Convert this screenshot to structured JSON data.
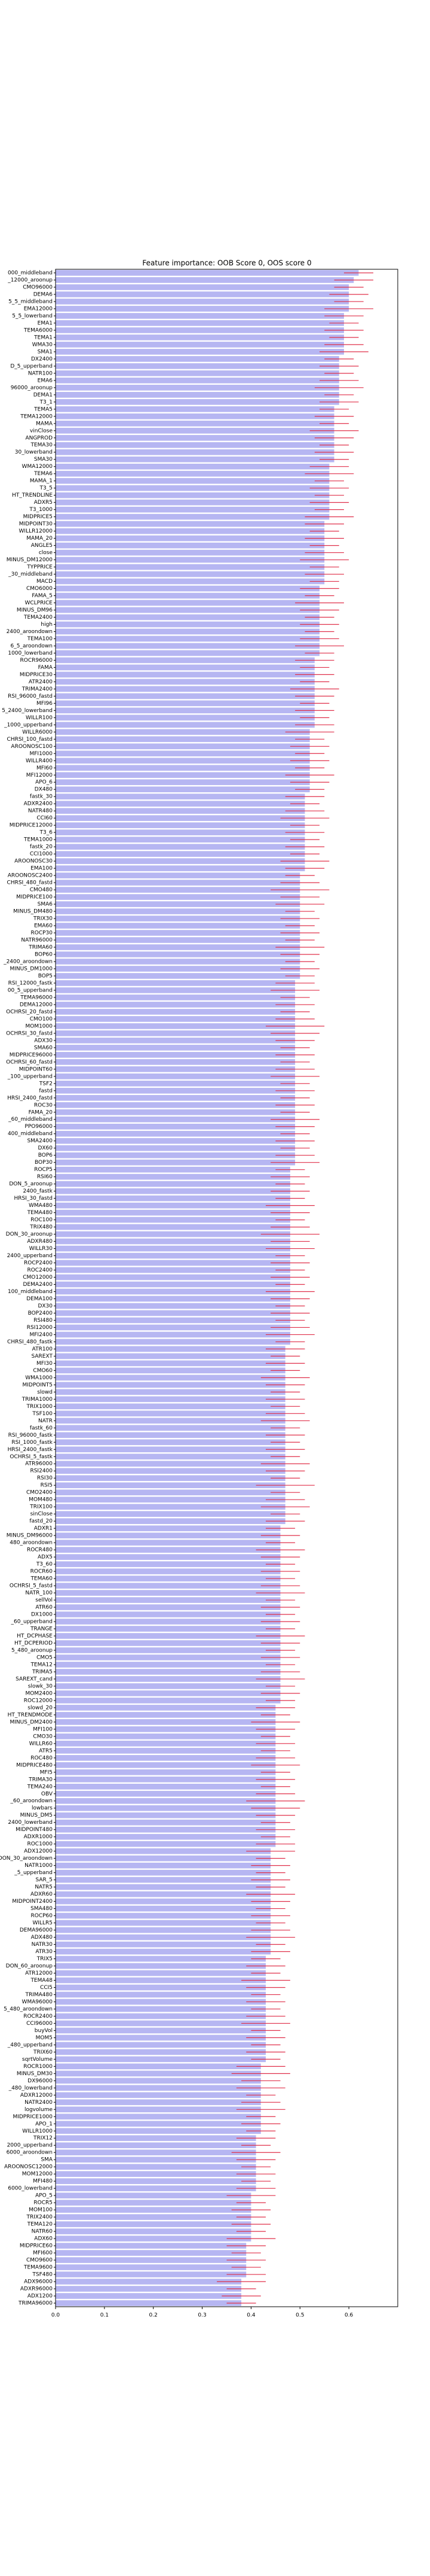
{
  "chart_data": {
    "type": "barh",
    "title": "Feature importance: OOB Score 0, OOS score 0",
    "color": "#b6b6f2",
    "error_color": "#e0304a",
    "xlim": [
      0,
      0.7
    ],
    "xticks": [
      {
        "value": 0,
        "label": "0.0"
      },
      0.1,
      0.2,
      0.3,
      0.4,
      0.5,
      0.6
    ],
    "categories": [
      "000_middleband",
      "_12000_aroonup",
      "CMO96000",
      "DEMA6",
      "5_5_middleband",
      "EMA12000",
      "5_5_lowerband",
      "EMA1",
      "TEMA6000",
      "TEMA1",
      "WMA30",
      "SMA1",
      "DX2400",
      "D_5_upperband",
      "NATR100",
      "EMA6",
      "96000_aroonup",
      "DEMA1",
      "T3_1",
      "TEMA5",
      "TEMA12000",
      "MAMA",
      "vinClose",
      "ANGPROD",
      "TEMA30",
      "30_lowerband",
      "SMA30",
      "WMA12000",
      "TEMA6",
      "MAMA_1",
      "T3_5",
      "HT_TRENDLINE",
      "ADXR5",
      "T3_1000",
      "MIDPRICE5",
      "MIDPOINT30",
      "WILLR12000",
      "MAMA_20",
      "ANGLE5",
      "close",
      "MINUS_DM12000",
      "TYPPRICE",
      "_30_middleband",
      "MACD",
      "CMO6000",
      "FAMA_5",
      "WCLPRICE",
      "MINUS_DM96",
      "TEMA2400",
      "high",
      "2400_aroondown",
      "TEMA100",
      "6_5_aroondown",
      "1000_lowerband",
      "ROCR96000",
      "FAMA",
      "MIDPRICE30",
      "ATR2400",
      "TRIMA2400",
      "RSI_96000_fastd",
      "MFI96",
      "5_2400_lowerband",
      "WILLR100",
      "_1000_upperband",
      "WILLR6000",
      "CHRSI_100_fastd",
      "AROONOSC100",
      "MFI1000",
      "WILLR400",
      "MFI60",
      "MFI12000",
      "APO_6",
      "DX480",
      "fastk_30",
      "ADXR2400",
      "NATR480",
      "CCI60",
      "MIDPRICE12000",
      "T3_6",
      "TEMA1000",
      "fastk_20",
      "CCI1000",
      "AROONOSC30",
      "EMA100",
      "AROONOSC2400",
      "CHRSI_480_fastd",
      "CMO480",
      "MIDPRICE100",
      "SMA6",
      "MINUS_DM480",
      "TRIX30",
      "EMA60",
      "ROCP30",
      "NATR96000",
      "TRIMA60",
      "BOP60",
      "_2400_aroondown",
      "MINUS_DM1000",
      "BOP5",
      "RSI_12000_fastk",
      "00_5_upperband",
      "TEMA96000",
      "DEMA12000",
      "OCHRSI_20_fastd",
      "CMO100",
      "MOM1000",
      "OCHRSI_30_fastd",
      "ADX30",
      "SMA60",
      "MIDPRICE96000",
      "OCHRSI_60_fastd",
      "MIDPOINT60",
      "_100_upperband",
      "TSF2",
      "fastd",
      "HRSI_2400_fastd",
      "ROC30",
      "FAMA_20",
      "_60_middleband",
      "PPO96000",
      "400_middleband",
      "SMA2400",
      "DX60",
      "BOP6",
      "BOP30",
      "ROCP5",
      "RSI60",
      "DON_5_aroonup",
      "2400_fastk",
      "HRSI_30_fastd",
      "WMA480",
      "TEMA480",
      "ROC100",
      "TRIX480",
      "DON_30_aroonup",
      "ADXR480",
      "WILLR30",
      "2400_upperband",
      "ROCP2400",
      "ROC2400",
      "CMO12000",
      "DEMA2400",
      "100_middleband",
      "DEMA100",
      "DX30",
      "BOP2400",
      "RSI480",
      "RSI12000",
      "MFI2400",
      "CHRSI_480_fastk",
      "ATR100",
      "SAREXT",
      "MFI30",
      "CMO60",
      "WMA1000",
      "MIDPOINT5",
      "slowd",
      "TRIMA1000",
      "TRIX1000",
      "TSF100",
      "NATR",
      "fastk_60",
      "RSI_96000_fastk",
      "RSI_1000_fastk",
      "HRSI_2400_fastk",
      "OCHRSI_5_fastk",
      "ATR96000",
      "RSI2400",
      "RSI30",
      "RSI5",
      "CMO2400",
      "MOM480",
      "TRIX100",
      "sinClose",
      "fastd_20",
      "ADXR1",
      "MINUS_DM96000",
      "480_aroondown",
      "ROCR480",
      "ADX5",
      "T3_60",
      "ROCR60",
      "TEMA60",
      "OCHRSI_5_fastd",
      "NATR_100",
      "sellVol",
      "ATR60",
      "DX1000",
      "_60_upperband",
      "TRANGE",
      "HT_DCPHASE",
      "HT_DCPERIOD",
      "5_480_aroonup",
      "CMO5",
      "TEMA12",
      "TRIMA5",
      "SAREXT_cand",
      "slowk_30",
      "MOM2400",
      "ROC12000",
      "slowd_20",
      "HT_TRENDMODE",
      "MINUS_DM2400",
      "MFI100",
      "CMO30",
      "WILLR60",
      "ATR5",
      "ROC480",
      "MIDPRICE480",
      "MFI5",
      "TRIMA30",
      "TEMA240",
      "OBV",
      "_60_aroondown",
      "lowbars",
      "MINUS_DM5",
      "2400_lowerband",
      "MIDPOINT480",
      "ADXR1000",
      "ROC1000",
      "ADX12000",
      "DON_30_aroondown",
      "NATR1000",
      "_5_upperband",
      "SAR_5",
      "NATR5",
      "ADXR60",
      "MIDPOINT2400",
      "SMA480",
      "ROCP60",
      "WILLR5",
      "DEMA96000",
      "ADX480",
      "NATR30",
      "ATR30",
      "TRIX5",
      "DON_60_aroonup",
      "ATR12000",
      "TEMA48",
      "CCI5",
      "TRIMA480",
      "WMA96000",
      "5_480_aroondown",
      "ROCR2400",
      "CCI96000",
      "buyVol",
      "MOM5",
      "_480_upperband",
      "TRIX60",
      "sqrtVolume",
      "ROCR1000",
      "MINUS_DM30",
      "DX96000",
      "_480_lowerband",
      "ADXR12000",
      "NATR2400",
      "logvolume",
      "MIDPRICE1000",
      "APO_1",
      "WILLR1000",
      "TRIX12",
      "2000_upperband",
      "6000_aroondown",
      "SMA",
      "AROONOSC12000",
      "MOM12000",
      "MFI480",
      "6000_lowerband",
      "APO_5",
      "ROCR5",
      "MOM100",
      "TRIX2400",
      "TEMA120",
      "NATR60",
      "ADX60",
      "MIDPRICE60",
      "MFI600",
      "CMO9600",
      "TEMA9600",
      "TSF480",
      "ADX96000",
      "ADXR96000",
      "ADX1200",
      "TRIMA96000"
    ],
    "values": [
      0.62,
      0.61,
      0.6,
      0.6,
      0.6,
      0.6,
      0.59,
      0.59,
      0.59,
      0.59,
      0.59,
      0.59,
      0.58,
      0.58,
      0.58,
      0.58,
      0.58,
      0.58,
      0.58,
      0.57,
      0.57,
      0.57,
      0.57,
      0.57,
      0.57,
      0.57,
      0.57,
      0.56,
      0.56,
      0.56,
      0.56,
      0.56,
      0.56,
      0.56,
      0.56,
      0.55,
      0.55,
      0.55,
      0.55,
      0.55,
      0.55,
      0.55,
      0.55,
      0.55,
      0.54,
      0.54,
      0.54,
      0.54,
      0.54,
      0.54,
      0.54,
      0.54,
      0.54,
      0.54,
      0.53,
      0.53,
      0.53,
      0.53,
      0.53,
      0.53,
      0.53,
      0.53,
      0.53,
      0.53,
      0.52,
      0.52,
      0.52,
      0.52,
      0.52,
      0.52,
      0.52,
      0.52,
      0.52,
      0.51,
      0.51,
      0.51,
      0.51,
      0.51,
      0.51,
      0.51,
      0.51,
      0.51,
      0.51,
      0.51,
      0.5,
      0.5,
      0.5,
      0.5,
      0.5,
      0.5,
      0.5,
      0.5,
      0.5,
      0.5,
      0.5,
      0.5,
      0.5,
      0.5,
      0.5,
      0.49,
      0.49,
      0.49,
      0.49,
      0.49,
      0.49,
      0.49,
      0.49,
      0.49,
      0.49,
      0.49,
      0.49,
      0.49,
      0.49,
      0.49,
      0.49,
      0.49,
      0.49,
      0.49,
      0.49,
      0.49,
      0.49,
      0.49,
      0.49,
      0.49,
      0.49,
      0.48,
      0.48,
      0.48,
      0.48,
      0.48,
      0.48,
      0.48,
      0.48,
      0.48,
      0.48,
      0.48,
      0.48,
      0.48,
      0.48,
      0.48,
      0.48,
      0.48,
      0.48,
      0.48,
      0.48,
      0.48,
      0.48,
      0.48,
      0.48,
      0.48,
      0.47,
      0.47,
      0.47,
      0.47,
      0.47,
      0.47,
      0.47,
      0.47,
      0.47,
      0.47,
      0.47,
      0.47,
      0.47,
      0.47,
      0.47,
      0.47,
      0.47,
      0.47,
      0.47,
      0.47,
      0.47,
      0.47,
      0.47,
      0.47,
      0.47,
      0.46,
      0.46,
      0.46,
      0.46,
      0.46,
      0.46,
      0.46,
      0.46,
      0.46,
      0.46,
      0.46,
      0.46,
      0.46,
      0.46,
      0.46,
      0.46,
      0.46,
      0.46,
      0.46,
      0.46,
      0.46,
      0.46,
      0.46,
      0.46,
      0.46,
      0.45,
      0.45,
      0.45,
      0.45,
      0.45,
      0.45,
      0.45,
      0.45,
      0.45,
      0.45,
      0.45,
      0.45,
      0.45,
      0.45,
      0.45,
      0.45,
      0.45,
      0.45,
      0.45,
      0.45,
      0.44,
      0.44,
      0.44,
      0.44,
      0.44,
      0.44,
      0.44,
      0.44,
      0.44,
      0.44,
      0.44,
      0.44,
      0.44,
      0.44,
      0.44,
      0.43,
      0.43,
      0.43,
      0.43,
      0.43,
      0.43,
      0.43,
      0.43,
      0.43,
      0.43,
      0.43,
      0.43,
      0.43,
      0.43,
      0.43,
      0.42,
      0.42,
      0.42,
      0.42,
      0.42,
      0.42,
      0.42,
      0.42,
      0.42,
      0.42,
      0.41,
      0.41,
      0.41,
      0.41,
      0.41,
      0.41,
      0.41,
      0.41,
      0.4,
      0.4,
      0.4,
      0.4,
      0.4,
      0.4,
      0.4,
      0.39,
      0.39,
      0.39,
      0.39,
      0.39,
      0.38,
      0.38,
      0.38,
      0.38
    ],
    "errors": [
      0.03,
      0.04,
      0.03,
      0.04,
      0.03,
      0.05,
      0.04,
      0.03,
      0.04,
      0.03,
      0.04,
      0.05,
      0.03,
      0.04,
      0.03,
      0.04,
      0.05,
      0.03,
      0.04,
      0.03,
      0.04,
      0.03,
      0.05,
      0.04,
      0.03,
      0.04,
      0.03,
      0.04,
      0.05,
      0.03,
      0.04,
      0.03,
      0.04,
      0.03,
      0.05,
      0.04,
      0.03,
      0.04,
      0.03,
      0.04,
      0.05,
      0.03,
      0.04,
      0.03,
      0.04,
      0.03,
      0.05,
      0.04,
      0.03,
      0.04,
      0.03,
      0.04,
      0.05,
      0.03,
      0.04,
      0.03,
      0.04,
      0.03,
      0.05,
      0.04,
      0.03,
      0.04,
      0.03,
      0.04,
      0.05,
      0.03,
      0.04,
      0.03,
      0.04,
      0.03,
      0.05,
      0.04,
      0.03,
      0.04,
      0.03,
      0.04,
      0.05,
      0.03,
      0.04,
      0.03,
      0.04,
      0.03,
      0.05,
      0.04,
      0.03,
      0.04,
      0.06,
      0.04,
      0.05,
      0.03,
      0.04,
      0.03,
      0.04,
      0.03,
      0.05,
      0.04,
      0.03,
      0.04,
      0.03,
      0.04,
      0.05,
      0.03,
      0.04,
      0.03,
      0.04,
      0.06,
      0.05,
      0.04,
      0.03,
      0.04,
      0.03,
      0.04,
      0.05,
      0.03,
      0.04,
      0.03,
      0.04,
      0.03,
      0.05,
      0.04,
      0.03,
      0.04,
      0.03,
      0.04,
      0.05,
      0.03,
      0.04,
      0.03,
      0.04,
      0.03,
      0.05,
      0.04,
      0.03,
      0.04,
      0.06,
      0.04,
      0.05,
      0.03,
      0.04,
      0.03,
      0.04,
      0.03,
      0.05,
      0.04,
      0.03,
      0.04,
      0.03,
      0.04,
      0.05,
      0.03,
      0.04,
      0.03,
      0.04,
      0.03,
      0.05,
      0.04,
      0.03,
      0.04,
      0.03,
      0.04,
      0.05,
      0.03,
      0.04,
      0.03,
      0.04,
      0.03,
      0.05,
      0.04,
      0.03,
      0.06,
      0.03,
      0.04,
      0.05,
      0.03,
      0.04,
      0.03,
      0.04,
      0.03,
      0.05,
      0.04,
      0.03,
      0.04,
      0.03,
      0.04,
      0.05,
      0.03,
      0.04,
      0.03,
      0.04,
      0.03,
      0.05,
      0.04,
      0.03,
      0.04,
      0.03,
      0.04,
      0.05,
      0.03,
      0.04,
      0.03,
      0.04,
      0.03,
      0.05,
      0.04,
      0.03,
      0.04,
      0.03,
      0.04,
      0.05,
      0.03,
      0.04,
      0.03,
      0.04,
      0.06,
      0.05,
      0.04,
      0.03,
      0.04,
      0.03,
      0.04,
      0.05,
      0.03,
      0.04,
      0.03,
      0.04,
      0.03,
      0.05,
      0.04,
      0.03,
      0.04,
      0.03,
      0.04,
      0.05,
      0.03,
      0.04,
      0.03,
      0.04,
      0.03,
      0.05,
      0.04,
      0.03,
      0.04,
      0.03,
      0.04,
      0.05,
      0.03,
      0.04,
      0.03,
      0.04,
      0.03,
      0.05,
      0.06,
      0.04,
      0.05,
      0.03,
      0.04,
      0.05,
      0.03,
      0.04,
      0.03,
      0.04,
      0.03,
      0.05,
      0.04,
      0.03,
      0.04,
      0.03,
      0.04,
      0.05,
      0.03,
      0.04,
      0.03,
      0.04,
      0.03,
      0.05,
      0.04,
      0.03,
      0.04,
      0.03,
      0.04,
      0.05,
      0.03,
      0.04,
      0.03
    ]
  }
}
